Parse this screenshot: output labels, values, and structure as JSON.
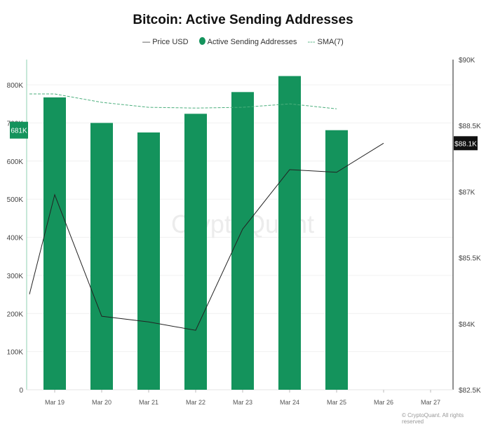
{
  "chart_data": {
    "type": "bar",
    "title": "Bitcoin: Active Sending Addresses",
    "categories": [
      "Mar 19",
      "Mar 20",
      "Mar 21",
      "Mar 22",
      "Mar 23",
      "Mar 24",
      "Mar 25",
      "Mar 26",
      "Mar 27"
    ],
    "series": [
      {
        "name": "Active Sending Addresses",
        "type": "bar",
        "axis": "left",
        "color": "#14935c",
        "values": [
          767000,
          700000,
          675000,
          724000,
          781000,
          823000,
          681000,
          null,
          null
        ]
      },
      {
        "name": "Price USD",
        "type": "line",
        "axis": "right",
        "color": "#222222",
        "start_value": 84670,
        "values": [
          86930,
          84170,
          84040,
          83850,
          86150,
          87500,
          87440,
          88100,
          null
        ]
      },
      {
        "name": "SMA(7)",
        "type": "line",
        "style": "dashed",
        "axis": "left",
        "color": "#4caf7d",
        "start_value": 776000,
        "values": [
          776000,
          754000,
          741000,
          739000,
          741000,
          750000,
          737000,
          null,
          null
        ]
      }
    ],
    "left_axis": {
      "ylim": [
        0,
        800000
      ],
      "ticks": [
        "0",
        "100K",
        "200K",
        "300K",
        "400K",
        "500K",
        "600K",
        "700K",
        "800K"
      ]
    },
    "right_axis": {
      "ylim": [
        82500,
        90000
      ],
      "ticks": [
        "$82.5K",
        "$84K",
        "$85.5K",
        "$87K",
        "$88.5K",
        "$90K"
      ]
    },
    "current_labels": {
      "left": "681K",
      "right": "$88.1K"
    },
    "legend": {
      "position": "top",
      "items": [
        "Price USD",
        "Active Sending Addresses",
        "SMA(7)"
      ]
    },
    "grid": true,
    "watermark": "CryptoQuant",
    "copyright": "© CryptoQuant. All rights reserved"
  }
}
